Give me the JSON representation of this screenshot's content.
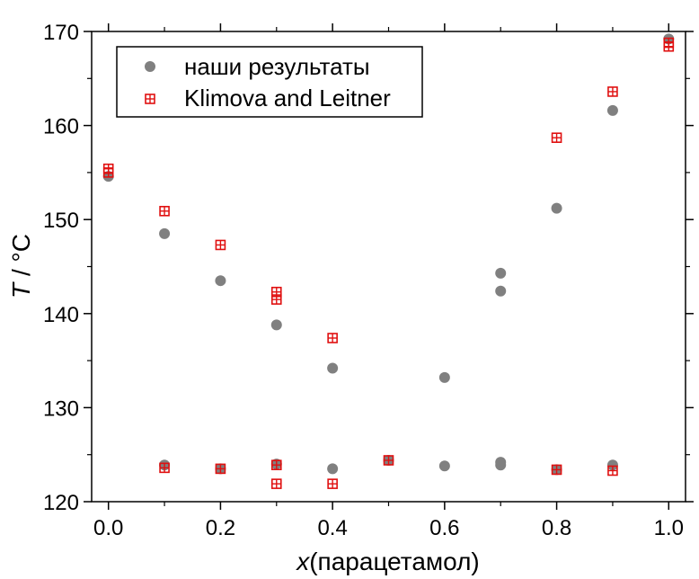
{
  "chart_data": {
    "type": "scatter",
    "xlabel_var": "x",
    "xlabel_rest": "(парацетамол)",
    "ylabel_var": "T",
    "ylabel_rest": " / °C",
    "xlim": [
      -0.03,
      1.03
    ],
    "ylim": [
      120,
      170
    ],
    "x_ticks": [
      "0.0",
      "0.2",
      "0.4",
      "0.6",
      "0.8",
      "1.0"
    ],
    "y_ticks": [
      "120",
      "130",
      "140",
      "150",
      "160",
      "170"
    ],
    "legend_position": "top-left",
    "series": [
      {
        "name": "наши результаты",
        "color": "#808080",
        "marker": "circle",
        "points": [
          [
            0.0,
            154.6
          ],
          [
            0.1,
            148.5
          ],
          [
            0.2,
            143.5
          ],
          [
            0.3,
            138.8
          ],
          [
            0.4,
            134.2
          ],
          [
            0.6,
            133.2
          ],
          [
            0.7,
            144.3
          ],
          [
            0.7,
            142.4
          ],
          [
            0.8,
            151.2
          ],
          [
            0.9,
            161.6
          ],
          [
            1.0,
            169.2
          ],
          [
            0.1,
            123.9
          ],
          [
            0.2,
            123.5
          ],
          [
            0.3,
            124.0
          ],
          [
            0.4,
            123.5
          ],
          [
            0.5,
            124.4
          ],
          [
            0.6,
            123.8
          ],
          [
            0.7,
            124.2
          ],
          [
            0.7,
            123.9
          ],
          [
            0.8,
            123.4
          ],
          [
            0.9,
            123.9
          ]
        ]
      },
      {
        "name": "Klimova and Leitner",
        "color": "#e01010",
        "marker": "square-cross",
        "points": [
          [
            0.0,
            155.4
          ],
          [
            0.0,
            155.0
          ],
          [
            0.1,
            150.9
          ],
          [
            0.2,
            147.3
          ],
          [
            0.3,
            142.3
          ],
          [
            0.3,
            141.5
          ],
          [
            0.4,
            137.4
          ],
          [
            0.8,
            158.7
          ],
          [
            0.9,
            163.6
          ],
          [
            1.0,
            168.4
          ],
          [
            1.0,
            168.8
          ],
          [
            0.1,
            123.6
          ],
          [
            0.2,
            123.5
          ],
          [
            0.3,
            123.9
          ],
          [
            0.3,
            121.9
          ],
          [
            0.4,
            121.9
          ],
          [
            0.5,
            124.4
          ],
          [
            0.8,
            123.4
          ],
          [
            0.9,
            123.3
          ]
        ]
      }
    ]
  }
}
